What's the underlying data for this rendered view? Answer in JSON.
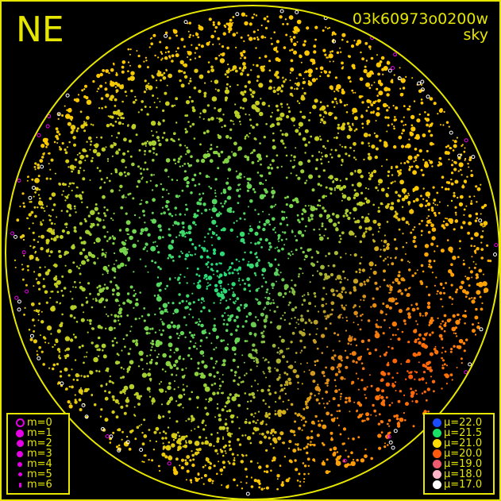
{
  "header": {
    "direction": "NE",
    "image_id": "03k60973o0200w",
    "mode": "sky"
  },
  "magnitude_legend": [
    {
      "label": "m=0",
      "size": 0
    },
    {
      "label": "m=1",
      "size": 1
    },
    {
      "label": "m=2",
      "size": 2
    },
    {
      "label": "m=3",
      "size": 3
    },
    {
      "label": "m=4",
      "size": 4
    },
    {
      "label": "m=5",
      "size": 5
    },
    {
      "label": "m=6",
      "size": 6
    }
  ],
  "magnitude_color": "#e600e6",
  "brightness_legend": [
    {
      "label": "μ=22.0",
      "color": "#1a4cff"
    },
    {
      "label": "μ=21.5",
      "color": "#19e066"
    },
    {
      "label": "μ=21.0",
      "color": "#ffdd00"
    },
    {
      "label": "μ=20.0",
      "color": "#ff5a10"
    },
    {
      "label": "μ=19.0",
      "color": "#f05a6e"
    },
    {
      "label": "μ=18.0",
      "color": "#ffb4c8"
    },
    {
      "label": "μ=17.0",
      "color": "#ffffff"
    }
  ],
  "colors": {
    "frame": "#e6e600",
    "background": "#000000"
  }
}
